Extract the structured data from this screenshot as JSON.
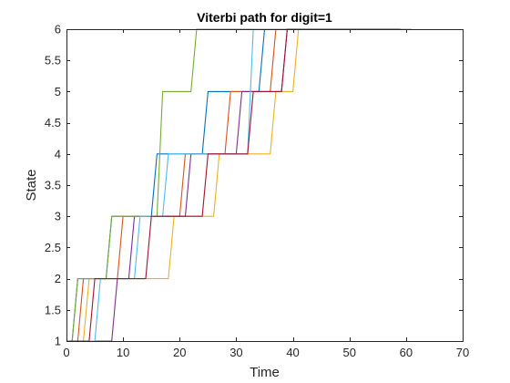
{
  "chart_data": {
    "type": "line",
    "title": "Viterbi path for digit=1",
    "xlabel": "Time",
    "ylabel": "State",
    "xlim": [
      0,
      70
    ],
    "ylim": [
      1,
      6
    ],
    "xticks": [
      "0",
      "10",
      "20",
      "30",
      "40",
      "50",
      "60",
      "70"
    ],
    "yticks": [
      "1",
      "1.5",
      "2",
      "2.5",
      "3",
      "3.5",
      "4",
      "4.5",
      "5",
      "5.5",
      "6"
    ],
    "grid": false,
    "legend": null,
    "line_style": "stairs",
    "series": [
      {
        "color": "#0072BD",
        "x": [
          0,
          1,
          2,
          7,
          8,
          15,
          16,
          24,
          25,
          34,
          35,
          40
        ],
        "y": [
          1,
          1,
          2,
          2,
          3,
          3,
          4,
          4,
          5,
          5,
          6,
          6
        ]
      },
      {
        "color": "#D95319",
        "x": [
          0,
          2,
          3,
          9,
          10,
          20,
          21,
          28,
          29,
          36,
          37,
          58
        ],
        "y": [
          1,
          1,
          2,
          2,
          3,
          3,
          4,
          4,
          5,
          5,
          6,
          6
        ]
      },
      {
        "color": "#EDB120",
        "x": [
          0,
          3,
          4,
          18,
          19,
          26,
          27,
          36,
          37,
          40,
          41,
          61
        ],
        "y": [
          1,
          1,
          2,
          2,
          3,
          3,
          4,
          4,
          5,
          5,
          6,
          6
        ]
      },
      {
        "color": "#7E2F8E",
        "x": [
          0,
          8,
          9,
          11,
          12,
          21,
          22,
          30,
          31,
          38,
          39,
          60
        ],
        "y": [
          1,
          1,
          2,
          2,
          3,
          3,
          4,
          4,
          5,
          5,
          6,
          6
        ]
      },
      {
        "color": "#77AC30",
        "x": [
          0,
          1,
          2,
          7,
          8,
          16,
          17,
          22,
          23,
          40
        ],
        "y": [
          1,
          1,
          2,
          2,
          3,
          3,
          5,
          5,
          6,
          6
        ]
      },
      {
        "color": "#4DBEEE",
        "x": [
          0,
          5,
          6,
          12,
          13,
          17,
          18,
          32,
          33,
          61
        ],
        "y": [
          1,
          1,
          2,
          2,
          3,
          3,
          4,
          4,
          6,
          6
        ]
      },
      {
        "color": "#A2142F",
        "x": [
          0,
          4,
          5,
          14,
          15,
          24,
          25,
          32,
          33,
          38,
          39,
          59
        ],
        "y": [
          1,
          1,
          2,
          2,
          3,
          3,
          4,
          4,
          5,
          5,
          6,
          6
        ]
      }
    ]
  }
}
